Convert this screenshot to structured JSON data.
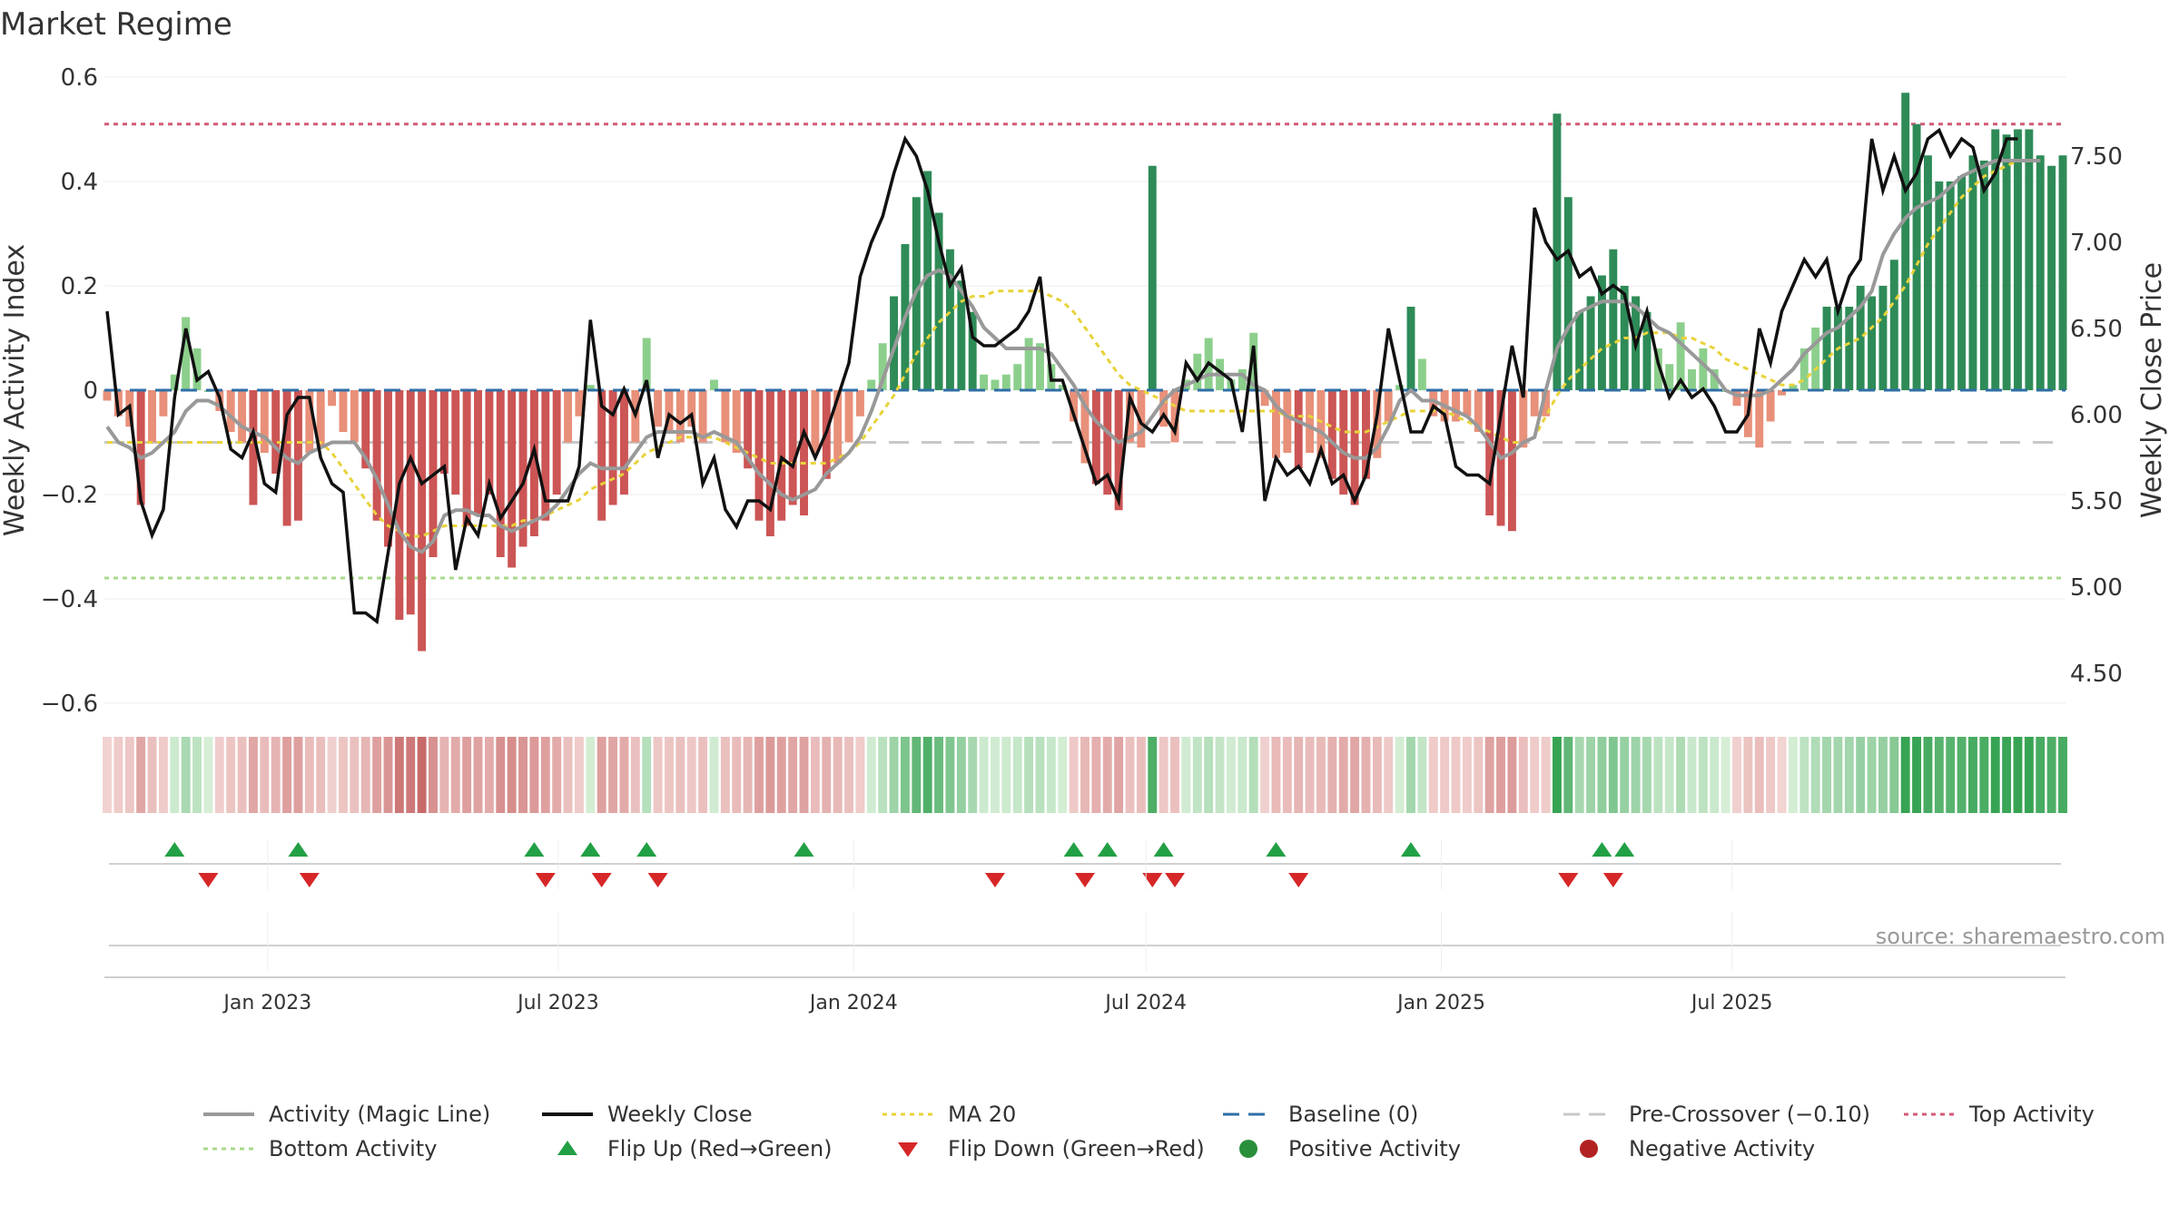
{
  "title": "Market Regime",
  "source": "source: sharemaestro.com",
  "colors": {
    "activity": "#999999",
    "close": "#111111",
    "ma20": "#e8d33a",
    "baseline": "#2f6fa6",
    "pre_crossover": "#c8c8c8",
    "top": "#d45a78",
    "bottom": "#a8d98a",
    "flip_up": "#22a045",
    "flip_down": "#d62728",
    "positive": "#2a8f3a",
    "negative": "#b22222",
    "green_dark": "#2e8b57",
    "green_light": "#8ccf8c",
    "red_dark": "#cc5555",
    "red_light": "#e8907a"
  },
  "legend": [
    {
      "label": "Activity (Magic Line)",
      "kind": "line",
      "color": "#999999"
    },
    {
      "label": "Weekly Close",
      "kind": "line",
      "color": "#111111"
    },
    {
      "label": "MA 20",
      "kind": "dotted",
      "color": "#e8d33a"
    },
    {
      "label": "Baseline (0)",
      "kind": "dashed",
      "color": "#2f6fa6"
    },
    {
      "label": "Pre-Crossover (−0.10)",
      "kind": "dashed",
      "color": "#c8c8c8"
    },
    {
      "label": "Top Activity",
      "kind": "dotted",
      "color": "#d45a78"
    },
    {
      "label": "Bottom Activity",
      "kind": "dotted",
      "color": "#a8d98a"
    },
    {
      "label": "Flip Up (Red→Green)",
      "kind": "tri-up",
      "color": "#22a045"
    },
    {
      "label": "Flip Down (Green→Red)",
      "kind": "tri-down",
      "color": "#d62728"
    },
    {
      "label": "Positive Activity",
      "kind": "dot",
      "color": "#2a8f3a"
    },
    {
      "label": "Negative Activity",
      "kind": "dot",
      "color": "#b22222"
    }
  ],
  "chart_data": {
    "type": "bar",
    "ylabel": "Weekly Activity Index",
    "y2label": "Weekly Close Price",
    "ylim": [
      -0.6,
      0.6
    ],
    "y2lim": [
      4.5,
      7.75
    ],
    "yticks": [
      "0.6",
      "0.4",
      "0.2",
      "0",
      "−0.2",
      "−0.4",
      "−0.6"
    ],
    "y2ticks": [
      "7.50",
      "7.00",
      "6.50",
      "6.00",
      "5.50",
      "5.00",
      "4.50"
    ],
    "xticks": [
      "Jan 2023",
      "Jul 2023",
      "Jan 2024",
      "Jul 2024",
      "Jan 2025",
      "Jul 2025"
    ],
    "reference_lines": {
      "baseline": 0,
      "pre_crossover": -0.1,
      "top_activity": 0.51,
      "bottom_activity": -0.36
    },
    "activity": [
      -0.02,
      -0.05,
      -0.07,
      -0.22,
      -0.1,
      -0.05,
      0.03,
      0.14,
      0.08,
      0,
      -0.04,
      -0.08,
      -0.1,
      -0.22,
      -0.12,
      -0.16,
      -0.26,
      -0.25,
      -0.12,
      -0.11,
      -0.03,
      -0.08,
      -0.1,
      -0.15,
      -0.25,
      -0.3,
      -0.44,
      -0.43,
      -0.5,
      -0.32,
      -0.16,
      -0.2,
      -0.26,
      -0.24,
      -0.2,
      -0.32,
      -0.34,
      -0.3,
      -0.28,
      -0.25,
      -0.2,
      -0.1,
      -0.05,
      0.01,
      -0.25,
      -0.22,
      -0.2,
      -0.1,
      0.1,
      -0.07,
      -0.08,
      -0.1,
      -0.07,
      -0.1,
      0.02,
      -0.1,
      -0.12,
      -0.15,
      -0.25,
      -0.28,
      -0.25,
      -0.22,
      -0.24,
      -0.12,
      -0.17,
      -0.14,
      -0.1,
      -0.05,
      0.02,
      0.09,
      0.18,
      0.28,
      0.37,
      0.42,
      0.34,
      0.27,
      0.21,
      0.15,
      0.03,
      0.02,
      0.03,
      0.05,
      0.1,
      0.09,
      0.05,
      0.01,
      -0.06,
      -0.14,
      -0.18,
      -0.2,
      -0.23,
      -0.1,
      -0.11,
      0.43,
      -0.07,
      -0.1,
      0.02,
      0.07,
      0.1,
      0.06,
      0.02,
      0.04,
      0.11,
      -0.03,
      -0.13,
      -0.12,
      -0.15,
      -0.12,
      -0.13,
      -0.17,
      -0.2,
      -0.22,
      -0.17,
      -0.13,
      -0.06,
      0.01,
      0.16,
      0.06,
      -0.05,
      -0.06,
      -0.06,
      -0.05,
      -0.08,
      -0.24,
      -0.26,
      -0.27,
      -0.11,
      -0.05,
      -0.05,
      0.53,
      0.37,
      0.15,
      0.18,
      0.22,
      0.27,
      0.2,
      0.18,
      0.15,
      0.08,
      0.05,
      0.13,
      0.04,
      0.08,
      0.04,
      0,
      -0.03,
      -0.09,
      -0.11,
      -0.06,
      -0.01,
      0.01,
      0.08,
      0.12,
      0.16,
      0.16,
      0.16,
      0.2,
      0.18,
      0.2,
      0.25,
      0.57,
      0.51,
      0.45,
      0.4,
      0.4,
      0.41,
      0.45,
      0.44,
      0.5,
      0.49,
      0.5,
      0.5,
      0.45,
      0.43,
      0.45
    ],
    "activity_line": [
      -0.07,
      -0.1,
      -0.11,
      -0.13,
      -0.12,
      -0.1,
      -0.08,
      -0.04,
      -0.02,
      -0.02,
      -0.03,
      -0.05,
      -0.07,
      -0.08,
      -0.09,
      -0.11,
      -0.13,
      -0.14,
      -0.12,
      -0.11,
      -0.1,
      -0.1,
      -0.1,
      -0.13,
      -0.17,
      -0.22,
      -0.27,
      -0.3,
      -0.31,
      -0.29,
      -0.24,
      -0.23,
      -0.23,
      -0.24,
      -0.24,
      -0.26,
      -0.27,
      -0.26,
      -0.25,
      -0.24,
      -0.22,
      -0.19,
      -0.16,
      -0.14,
      -0.15,
      -0.15,
      -0.15,
      -0.12,
      -0.09,
      -0.08,
      -0.08,
      -0.08,
      -0.08,
      -0.09,
      -0.08,
      -0.09,
      -0.1,
      -0.13,
      -0.16,
      -0.18,
      -0.2,
      -0.21,
      -0.2,
      -0.19,
      -0.16,
      -0.14,
      -0.12,
      -0.09,
      -0.04,
      0.02,
      0.08,
      0.14,
      0.19,
      0.22,
      0.23,
      0.22,
      0.19,
      0.16,
      0.12,
      0.1,
      0.08,
      0.08,
      0.08,
      0.08,
      0.07,
      0.04,
      0.01,
      -0.03,
      -0.06,
      -0.08,
      -0.1,
      -0.09,
      -0.08,
      -0.05,
      -0.02,
      0,
      0.01,
      0.02,
      0.03,
      0.03,
      0.03,
      0.03,
      0.01,
      0,
      -0.03,
      -0.05,
      -0.06,
      -0.07,
      -0.08,
      -0.1,
      -0.12,
      -0.13,
      -0.13,
      -0.11,
      -0.07,
      -0.02,
      0,
      -0.02,
      -0.02,
      -0.03,
      -0.04,
      -0.05,
      -0.07,
      -0.1,
      -0.13,
      -0.12,
      -0.1,
      -0.09,
      0,
      0.08,
      0.12,
      0.15,
      0.16,
      0.17,
      0.17,
      0.17,
      0.16,
      0.14,
      0.12,
      0.11,
      0.09,
      0.07,
      0.05,
      0.03,
      0,
      -0.01,
      -0.01,
      -0.01,
      0,
      0.02,
      0.04,
      0.07,
      0.09,
      0.11,
      0.12,
      0.14,
      0.16,
      0.19,
      0.26,
      0.3,
      0.33,
      0.35,
      0.36,
      0.37,
      0.39,
      0.41,
      0.42,
      0.43,
      0.44,
      0.44,
      0.44,
      0.44,
      0.44
    ],
    "close": [
      6.6,
      6.0,
      6.05,
      5.5,
      5.3,
      5.45,
      6.1,
      6.5,
      6.2,
      6.25,
      6.1,
      5.8,
      5.75,
      5.9,
      5.6,
      5.55,
      6.0,
      6.1,
      6.1,
      5.75,
      5.6,
      5.55,
      4.85,
      4.85,
      4.8,
      5.2,
      5.6,
      5.75,
      5.6,
      5.65,
      5.7,
      5.1,
      5.4,
      5.3,
      5.6,
      5.4,
      5.5,
      5.6,
      5.8,
      5.5,
      5.5,
      5.5,
      5.7,
      6.55,
      6.05,
      6.0,
      6.15,
      6.0,
      6.2,
      5.75,
      6.0,
      5.95,
      6.0,
      5.6,
      5.75,
      5.45,
      5.35,
      5.5,
      5.5,
      5.45,
      5.75,
      5.7,
      5.9,
      5.75,
      5.9,
      6.1,
      6.3,
      6.8,
      7.0,
      7.15,
      7.4,
      7.6,
      7.5,
      7.3,
      7.0,
      6.75,
      6.85,
      6.45,
      6.4,
      6.4,
      6.45,
      6.5,
      6.6,
      6.8,
      6.2,
      6.2,
      6.0,
      5.8,
      5.6,
      5.65,
      5.5,
      6.1,
      5.95,
      5.9,
      6.0,
      5.9,
      6.3,
      6.2,
      6.3,
      6.25,
      6.2,
      5.9,
      6.4,
      5.5,
      5.75,
      5.65,
      5.7,
      5.6,
      5.8,
      5.6,
      5.65,
      5.5,
      5.65,
      6.0,
      6.5,
      6.2,
      5.9,
      5.9,
      6.05,
      6.0,
      5.7,
      5.65,
      5.65,
      5.6,
      6.0,
      6.4,
      6.1,
      7.2,
      7.0,
      6.9,
      6.95,
      6.8,
      6.85,
      6.7,
      6.75,
      6.7,
      6.4,
      6.6,
      6.3,
      6.1,
      6.2,
      6.1,
      6.15,
      6.05,
      5.9,
      5.9,
      6.0,
      6.5,
      6.3,
      6.6,
      6.75,
      6.9,
      6.8,
      6.9,
      6.6,
      6.8,
      6.9,
      7.6,
      7.3,
      7.5,
      7.3,
      7.4,
      7.6,
      7.65,
      7.5,
      7.6,
      7.55,
      7.3,
      7.4,
      7.6,
      7.6
    ],
    "ma20": [
      -0.1,
      -0.1,
      -0.1,
      -0.1,
      -0.1,
      -0.1,
      -0.1,
      -0.1,
      -0.1,
      -0.1,
      -0.1,
      -0.1,
      -0.1,
      -0.1,
      -0.1,
      -0.1,
      -0.1,
      -0.1,
      -0.1,
      -0.1,
      -0.12,
      -0.15,
      -0.18,
      -0.21,
      -0.24,
      -0.26,
      -0.27,
      -0.28,
      -0.28,
      -0.27,
      -0.26,
      -0.26,
      -0.26,
      -0.26,
      -0.26,
      -0.26,
      -0.26,
      -0.25,
      -0.25,
      -0.24,
      -0.23,
      -0.22,
      -0.21,
      -0.19,
      -0.18,
      -0.17,
      -0.16,
      -0.14,
      -0.12,
      -0.11,
      -0.1,
      -0.09,
      -0.09,
      -0.09,
      -0.09,
      -0.1,
      -0.11,
      -0.12,
      -0.13,
      -0.14,
      -0.14,
      -0.14,
      -0.14,
      -0.14,
      -0.14,
      -0.13,
      -0.12,
      -0.1,
      -0.07,
      -0.04,
      -0.01,
      0.03,
      0.07,
      0.1,
      0.13,
      0.15,
      0.17,
      0.18,
      0.18,
      0.19,
      0.19,
      0.19,
      0.19,
      0.19,
      0.18,
      0.17,
      0.15,
      0.12,
      0.09,
      0.06,
      0.03,
      0.01,
      0,
      -0.01,
      -0.02,
      -0.03,
      -0.04,
      -0.04,
      -0.04,
      -0.04,
      -0.04,
      -0.04,
      -0.04,
      -0.04,
      -0.04,
      -0.05,
      -0.05,
      -0.05,
      -0.06,
      -0.07,
      -0.08,
      -0.08,
      -0.08,
      -0.07,
      -0.06,
      -0.05,
      -0.04,
      -0.04,
      -0.04,
      -0.04,
      -0.05,
      -0.06,
      -0.07,
      -0.08,
      -0.09,
      -0.1,
      -0.1,
      -0.09,
      -0.05,
      -0.01,
      0.02,
      0.04,
      0.06,
      0.08,
      0.09,
      0.1,
      0.1,
      0.11,
      0.11,
      0.11,
      0.1,
      0.1,
      0.09,
      0.08,
      0.06,
      0.05,
      0.04,
      0.03,
      0.02,
      0.01,
      0.01,
      0.02,
      0.04,
      0.06,
      0.08,
      0.09,
      0.1,
      0.12,
      0.14,
      0.17,
      0.2,
      0.24,
      0.28,
      0.31,
      0.34,
      0.37,
      0.39,
      0.41,
      0.42,
      0.43,
      0.44,
      0.44,
      0.44
    ],
    "flip_up_weeks": [
      6,
      17,
      38,
      43,
      48,
      62,
      86,
      89,
      94,
      104,
      116,
      133,
      135
    ],
    "flip_down_weeks": [
      9,
      18,
      39,
      44,
      49,
      79,
      87,
      93,
      95,
      106,
      130,
      134
    ]
  }
}
